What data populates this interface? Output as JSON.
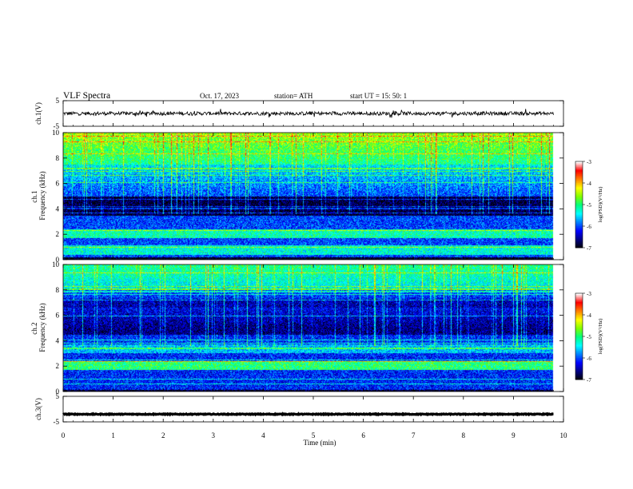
{
  "header": {
    "title": "VLF  Spectra",
    "date": "Oct. 17, 2023",
    "station": "station= ATH",
    "start": "start  UT  =    15: 50: 1"
  },
  "chart_data": [
    {
      "id": "ch1-voltage",
      "type": "line",
      "ylabel": "ch.1(V)",
      "ylim": [
        -5,
        5
      ],
      "yticks": [
        "5",
        "-5"
      ],
      "xlim": [
        0,
        10
      ],
      "trace": {
        "mean": 0,
        "noise_amplitude": 0.7,
        "spike_amplitude": 1.3,
        "end_min": 9.8
      }
    },
    {
      "id": "ch1-spectrogram",
      "type": "heatmap",
      "ylabel": "ch.1\nFrequency (kHz)",
      "ylabel_lines": [
        "ch.1",
        "Frequency (kHz)"
      ],
      "ylim": [
        0,
        10
      ],
      "yticks": [
        "0",
        "2",
        "4",
        "6",
        "8",
        "10"
      ],
      "xlim": [
        0,
        10
      ],
      "data_end_min": 9.8,
      "colorbar": {
        "label": "log(PSD)(V²/Hz)",
        "range": [
          -7,
          -3
        ],
        "ticks": [
          "-3",
          "-4",
          "-5",
          "-6",
          "-7"
        ]
      },
      "bands": [
        {
          "freq": 4.2,
          "level": -6.8
        },
        {
          "freq": 2.1,
          "level": -4.6
        },
        {
          "freq": 0.8,
          "level": -4.8
        }
      ]
    },
    {
      "id": "ch2-spectrogram",
      "type": "heatmap",
      "ylabel": "ch.2\nFrequency (kHz)",
      "ylabel_lines": [
        "ch.2",
        "Frequency (kHz)"
      ],
      "ylim": [
        0,
        10
      ],
      "yticks": [
        "0",
        "2",
        "4",
        "6",
        "8",
        "10"
      ],
      "xlim": [
        0,
        10
      ],
      "data_end_min": 9.8,
      "colorbar": {
        "label": "log(PSD)(V²/Hz)",
        "range": [
          -7,
          -3
        ],
        "ticks": [
          "-3",
          "-4",
          "-5",
          "-6",
          "-7"
        ]
      },
      "bands": [
        {
          "freq": 2.1,
          "level": -4.2
        },
        {
          "freq": 3.4,
          "level": -5.2
        },
        {
          "freq": 7.0,
          "level": -6.6
        }
      ]
    },
    {
      "id": "ch3-voltage",
      "type": "line",
      "ylabel": "ch.3(V)",
      "ylim": [
        -5,
        5
      ],
      "yticks": [
        "5",
        "-5"
      ],
      "xlim": [
        0,
        10
      ],
      "trace": {
        "mean": -2,
        "noise_amplitude": 0.15,
        "spike_amplitude": 0,
        "end_min": 9.8
      }
    }
  ],
  "xaxis": {
    "label": "Time  (min)",
    "ticks": [
      "0",
      "1",
      "2",
      "3",
      "4",
      "5",
      "6",
      "7",
      "8",
      "9",
      "10"
    ]
  },
  "colors": {
    "colormap": [
      "#000000",
      "#000080",
      "#0000ff",
      "#0080ff",
      "#00ffff",
      "#00ff80",
      "#80ff00",
      "#ffff00",
      "#ff8000",
      "#ff0000",
      "#ffffff"
    ]
  }
}
